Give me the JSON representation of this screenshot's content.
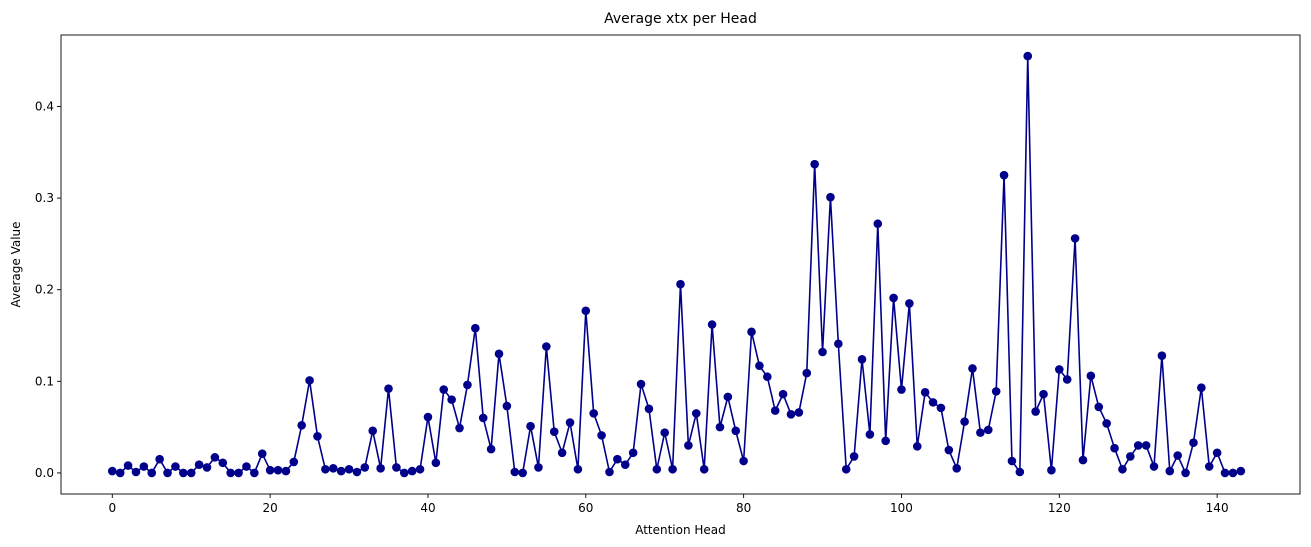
{
  "chart_data": {
    "type": "line",
    "title": "Average xtx per Head",
    "xlabel": "Attention Head",
    "ylabel": "Average Value",
    "xlim": [
      -6.5,
      150.5
    ],
    "ylim": [
      -0.023,
      0.478
    ],
    "xticks": [
      0,
      20,
      40,
      60,
      80,
      100,
      120,
      140
    ],
    "yticks": [
      0.0,
      0.1,
      0.2,
      0.3,
      0.4
    ],
    "ytick_labels": [
      "0.0",
      "0.1",
      "0.2",
      "0.3",
      "0.4"
    ],
    "grid": false,
    "marker": "circle",
    "color": "#00008b",
    "series": [
      {
        "x": [
          0,
          1,
          2,
          3,
          4,
          5,
          6,
          7,
          8,
          9,
          10,
          11,
          12,
          13,
          14,
          15,
          16,
          17,
          18,
          19,
          20,
          21,
          22,
          23,
          24,
          25,
          26,
          27,
          28,
          29,
          30,
          31,
          32,
          33,
          34,
          35,
          36,
          37,
          38,
          39,
          40,
          41,
          42,
          43,
          44,
          45,
          46,
          47,
          48,
          49,
          50,
          51,
          52,
          53,
          54,
          55,
          56,
          57,
          58,
          59,
          60,
          61,
          62,
          63,
          64,
          65,
          66,
          67,
          68,
          69,
          70,
          71,
          72,
          73,
          74,
          75,
          76,
          77,
          78,
          79,
          80,
          81,
          82,
          83,
          84,
          85,
          86,
          87,
          88,
          89,
          90,
          91,
          92,
          93,
          94,
          95,
          96,
          97,
          98,
          99,
          100,
          101,
          102,
          103,
          104,
          105,
          106,
          107,
          108,
          109,
          110,
          111,
          112,
          113,
          114,
          115,
          116,
          117,
          118,
          119,
          120,
          121,
          122,
          123,
          124,
          125,
          126,
          127,
          128,
          129,
          130,
          131,
          132,
          133,
          134,
          135,
          136,
          137,
          138,
          139,
          140,
          141,
          142,
          143
        ],
        "values": [
          0.002,
          0.0,
          0.008,
          0.001,
          0.007,
          0.0,
          0.015,
          0.0,
          0.007,
          0.0,
          0.0,
          0.009,
          0.006,
          0.017,
          0.011,
          0.0,
          0.0,
          0.007,
          0.0,
          0.021,
          0.003,
          0.003,
          0.002,
          0.012,
          0.052,
          0.101,
          0.04,
          0.004,
          0.005,
          0.002,
          0.004,
          0.001,
          0.006,
          0.046,
          0.005,
          0.092,
          0.006,
          0.0,
          0.002,
          0.004,
          0.061,
          0.011,
          0.091,
          0.08,
          0.049,
          0.096,
          0.158,
          0.06,
          0.026,
          0.13,
          0.073,
          0.001,
          0.0,
          0.051,
          0.006,
          0.138,
          0.045,
          0.022,
          0.055,
          0.004,
          0.177,
          0.065,
          0.041,
          0.001,
          0.015,
          0.009,
          0.022,
          0.097,
          0.07,
          0.004,
          0.044,
          0.004,
          0.206,
          0.03,
          0.065,
          0.004,
          0.162,
          0.05,
          0.083,
          0.046,
          0.013,
          0.154,
          0.117,
          0.105,
          0.068,
          0.086,
          0.064,
          0.066,
          0.109,
          0.337,
          0.132,
          0.301,
          0.141,
          0.004,
          0.018,
          0.124,
          0.042,
          0.272,
          0.035,
          0.191,
          0.091,
          0.185,
          0.029,
          0.088,
          0.077,
          0.071,
          0.025,
          0.005,
          0.056,
          0.114,
          0.044,
          0.047,
          0.089,
          0.325,
          0.013,
          0.001,
          0.455,
          0.067,
          0.086,
          0.003,
          0.113,
          0.102,
          0.256,
          0.014,
          0.106,
          0.072,
          0.054,
          0.027,
          0.004,
          0.018,
          0.03,
          0.03,
          0.007,
          0.128,
          0.002,
          0.019,
          0.0,
          0.033,
          0.093,
          0.007,
          0.022,
          0.0,
          0.0,
          0.002
        ]
      }
    ]
  }
}
